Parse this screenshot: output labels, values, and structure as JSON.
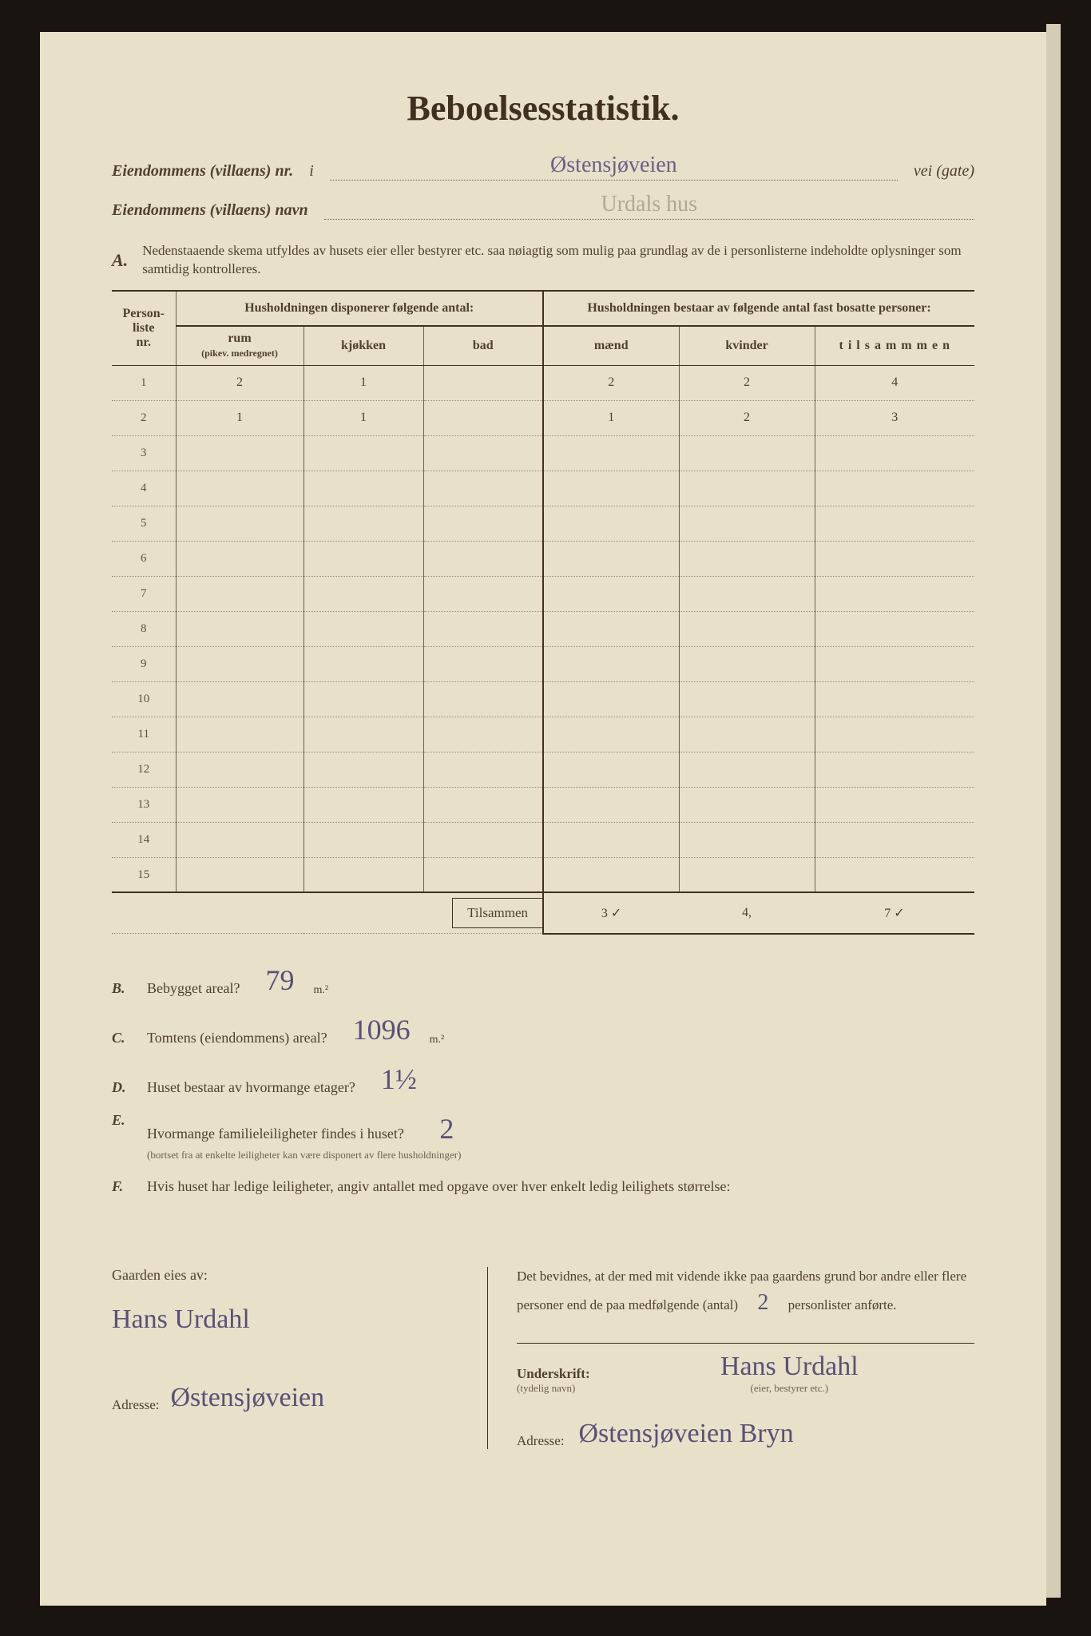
{
  "title": "Beboelsesstatistik.",
  "header": {
    "nr_label": "Eiendommens (villaens) nr.",
    "nr_prefix": "i",
    "street": "Østensjøveien",
    "street_suffix": "vei (gate)",
    "navn_label": "Eiendommens (villaens) navn",
    "navn_value": "Urdals hus"
  },
  "section_a": {
    "letter": "A.",
    "instruction": "Nedenstaaende skema utfyldes av husets eier eller bestyrer etc. saa nøiagtig som mulig paa grundlag av de i personlisterne indeholdte oplysninger som samtidig kontrolleres."
  },
  "table": {
    "headers": {
      "personliste": "Person-\nliste\nnr.",
      "disp": "Husholdningen disponerer følgende antal:",
      "bestaar": "Husholdningen bestaar av følgende antal fast bosatte personer:",
      "rum": "rum",
      "rum_sub": "(pikev. medregnet)",
      "kjokken": "kjøkken",
      "bad": "bad",
      "maend": "mænd",
      "kvinder": "kvinder",
      "tilsammen": "t i l s a m m m e n"
    },
    "rows": [
      {
        "idx": "1",
        "rum": "2",
        "kjokken": "1",
        "bad": "",
        "maend": "2",
        "kvinder": "2",
        "tilsammen": "4"
      },
      {
        "idx": "2",
        "rum": "1",
        "kjokken": "1",
        "bad": "",
        "maend": "1",
        "kvinder": "2",
        "tilsammen": "3"
      },
      {
        "idx": "3",
        "rum": "",
        "kjokken": "",
        "bad": "",
        "maend": "",
        "kvinder": "",
        "tilsammen": ""
      },
      {
        "idx": "4",
        "rum": "",
        "kjokken": "",
        "bad": "",
        "maend": "",
        "kvinder": "",
        "tilsammen": ""
      },
      {
        "idx": "5",
        "rum": "",
        "kjokken": "",
        "bad": "",
        "maend": "",
        "kvinder": "",
        "tilsammen": ""
      },
      {
        "idx": "6",
        "rum": "",
        "kjokken": "",
        "bad": "",
        "maend": "",
        "kvinder": "",
        "tilsammen": ""
      },
      {
        "idx": "7",
        "rum": "",
        "kjokken": "",
        "bad": "",
        "maend": "",
        "kvinder": "",
        "tilsammen": ""
      },
      {
        "idx": "8",
        "rum": "",
        "kjokken": "",
        "bad": "",
        "maend": "",
        "kvinder": "",
        "tilsammen": ""
      },
      {
        "idx": "9",
        "rum": "",
        "kjokken": "",
        "bad": "",
        "maend": "",
        "kvinder": "",
        "tilsammen": ""
      },
      {
        "idx": "10",
        "rum": "",
        "kjokken": "",
        "bad": "",
        "maend": "",
        "kvinder": "",
        "tilsammen": ""
      },
      {
        "idx": "11",
        "rum": "",
        "kjokken": "",
        "bad": "",
        "maend": "",
        "kvinder": "",
        "tilsammen": ""
      },
      {
        "idx": "12",
        "rum": "",
        "kjokken": "",
        "bad": "",
        "maend": "",
        "kvinder": "",
        "tilsammen": ""
      },
      {
        "idx": "13",
        "rum": "",
        "kjokken": "",
        "bad": "",
        "maend": "",
        "kvinder": "",
        "tilsammen": ""
      },
      {
        "idx": "14",
        "rum": "",
        "kjokken": "",
        "bad": "",
        "maend": "",
        "kvinder": "",
        "tilsammen": ""
      },
      {
        "idx": "15",
        "rum": "",
        "kjokken": "",
        "bad": "",
        "maend": "",
        "kvinder": "",
        "tilsammen": ""
      }
    ],
    "totals_label": "Tilsammen",
    "totals": {
      "maend": "3 ✓",
      "kvinder": "4,",
      "tilsammen": "7 ✓"
    }
  },
  "questions": {
    "B": {
      "label": "B.",
      "text": "Bebygget areal?",
      "value": "79",
      "unit": "m.²"
    },
    "C": {
      "label": "C.",
      "text": "Tomtens (eiendommens) areal?",
      "value": "1096",
      "unit": "m.²"
    },
    "D": {
      "label": "D.",
      "text": "Huset bestaar av hvormange etager?",
      "value": "1½"
    },
    "E": {
      "label": "E.",
      "text": "Hvormange familieleiligheter findes i huset?",
      "value": "2",
      "sub": "(bortset fra at enkelte leiligheter kan være disponert av flere husholdninger)"
    },
    "F": {
      "label": "F.",
      "text": "Hvis huset har ledige leiligheter, angiv antallet med opgave over hver enkelt ledig leilighets størrelse:"
    }
  },
  "signature": {
    "owner_label": "Gaarden eies av:",
    "owner_name": "Hans Urdahl",
    "owner_addr_label": "Adresse:",
    "owner_addr": "Østensjøveien",
    "declaration": "Det bevidnes, at der med mit vidende ikke paa gaardens grund bor andre eller flere personer end de paa medfølgende (antal)",
    "decl_count": "2",
    "decl_suffix": "personlister anførte.",
    "sign_label": "Underskrift:",
    "sign_sub": "(tydelig navn)",
    "sign_name": "Hans Urdahl",
    "sign_role": "(eier, bestyrer etc.)",
    "addr_label": "Adresse:",
    "addr_value": "Østensjøveien Bryn"
  }
}
